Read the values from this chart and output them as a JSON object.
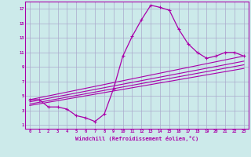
{
  "xlabel": "Windchill (Refroidissement éolien,°C)",
  "bg_color": "#cceaea",
  "line_color": "#aa00aa",
  "grid_color": "#aaaacc",
  "xlim": [
    -0.5,
    23.5
  ],
  "ylim": [
    0.5,
    18
  ],
  "xticks": [
    0,
    1,
    2,
    3,
    4,
    5,
    6,
    7,
    8,
    9,
    10,
    11,
    12,
    13,
    14,
    15,
    16,
    17,
    18,
    19,
    20,
    21,
    22,
    23
  ],
  "yticks": [
    1,
    3,
    5,
    7,
    9,
    11,
    13,
    15,
    17
  ],
  "series": [
    [
      0,
      4.5
    ],
    [
      1,
      4.5
    ],
    [
      2,
      3.5
    ],
    [
      3,
      3.5
    ],
    [
      4,
      3.2
    ],
    [
      5,
      2.3
    ],
    [
      6,
      2.0
    ],
    [
      7,
      1.5
    ],
    [
      8,
      2.5
    ],
    [
      9,
      6.0
    ],
    [
      10,
      10.5
    ],
    [
      11,
      13.2
    ],
    [
      12,
      15.5
    ],
    [
      13,
      17.5
    ],
    [
      14,
      17.2
    ],
    [
      15,
      16.8
    ],
    [
      16,
      14.2
    ],
    [
      17,
      12.2
    ],
    [
      18,
      11.0
    ],
    [
      19,
      10.2
    ],
    [
      20,
      10.5
    ],
    [
      21,
      11.0
    ],
    [
      22,
      11.0
    ],
    [
      23,
      10.5
    ]
  ],
  "straight_lines": [
    [
      [
        0,
        4.5
      ],
      [
        23,
        10.5
      ]
    ],
    [
      [
        0,
        4.2
      ],
      [
        23,
        9.8
      ]
    ],
    [
      [
        0,
        3.9
      ],
      [
        23,
        9.3
      ]
    ],
    [
      [
        0,
        3.7
      ],
      [
        23,
        8.8
      ]
    ]
  ]
}
